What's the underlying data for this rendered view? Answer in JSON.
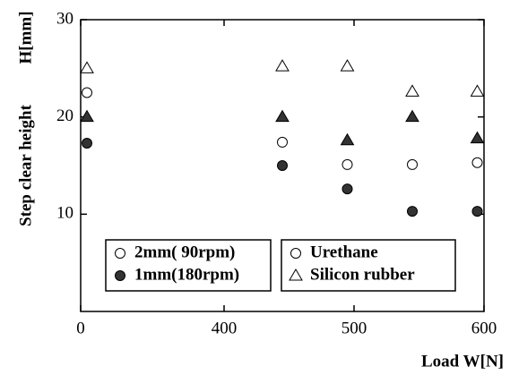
{
  "chart_data": {
    "type": "scatter",
    "x_label": "Load  W[N]",
    "y_label": "Step clear height",
    "y_label_unit": "H[mm]",
    "x": [
      0,
      440,
      490,
      540,
      590
    ],
    "xlim": [
      0,
      600
    ],
    "x_break": [
      0,
      400
    ],
    "xticks": [
      0,
      400,
      500,
      600
    ],
    "ylim": [
      0,
      30
    ],
    "yticks": [
      10,
      20,
      30
    ],
    "series": [
      {
        "marker": "circle",
        "fill": "open",
        "color": "#000",
        "values": [
          22.5,
          17.4,
          15.1,
          15.1,
          15.3
        ]
      },
      {
        "marker": "circle",
        "fill": "filled",
        "color": "#333",
        "values": [
          17.3,
          15.0,
          12.6,
          10.3,
          10.3
        ]
      },
      {
        "marker": "triangle",
        "fill": "open",
        "color": "#000",
        "values": [
          25.0,
          25.2,
          25.2,
          22.6,
          22.6
        ]
      },
      {
        "marker": "triangle",
        "fill": "filled",
        "color": "#333",
        "values": [
          20.0,
          20.0,
          17.6,
          20.0,
          17.8
        ]
      }
    ],
    "legends": [
      [
        {
          "label": "2mm( 90rpm)",
          "marker": "circle",
          "fill": "open"
        },
        {
          "label": "1mm(180rpm)",
          "marker": "circle",
          "fill": "filled"
        }
      ],
      [
        {
          "label": "Urethane",
          "marker": "circle",
          "fill": "open"
        },
        {
          "label": "Silicon rubber",
          "marker": "triangle",
          "fill": "open"
        }
      ]
    ]
  }
}
